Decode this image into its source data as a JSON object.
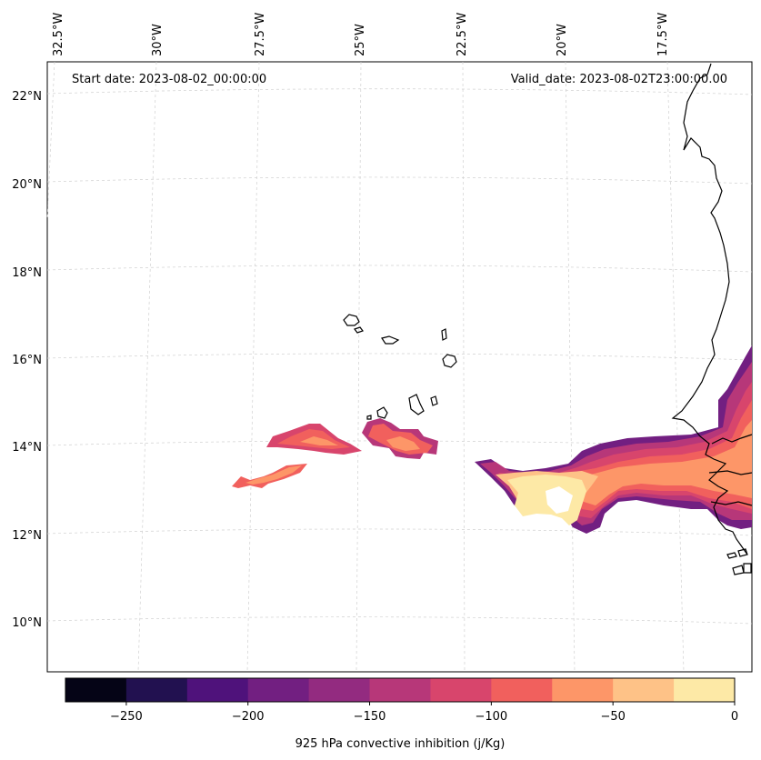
{
  "map": {
    "start_date": "Start date: 2023-08-02_00:00:00",
    "valid_date": "Valid_date: 2023-08-02T23:00:00.00",
    "lon_labels": [
      "32.5°W",
      "30°W",
      "27.5°W",
      "25°W",
      "22.5°W",
      "20°W",
      "17.5°W"
    ],
    "lat_labels": [
      "22°N",
      "20°N",
      "18°N",
      "16°N",
      "14°N",
      "12°N",
      "10°N"
    ],
    "lon_values": [
      -32.5,
      -30,
      -27.5,
      -25,
      -22.5,
      -20,
      -17.5
    ],
    "lat_values": [
      22,
      20,
      18,
      16,
      14,
      12,
      10
    ],
    "lon_range": [
      -33.4,
      -16.0
    ],
    "lat_range": [
      8.9,
      22.8
    ]
  },
  "colorbar": {
    "label": "925 hPa convective inhibition (j/Kg)",
    "tick_labels": [
      "−250",
      "−200",
      "−150",
      "−100",
      "−50",
      "0"
    ],
    "tick_values": [
      -250,
      -200,
      -150,
      -100,
      -50,
      0
    ],
    "levels": [
      -275,
      -250,
      -225,
      -200,
      -175,
      -150,
      -125,
      -100,
      -75,
      -50,
      -25,
      0
    ],
    "colors": [
      "#050416",
      "#221150",
      "#4f127b",
      "#721f81",
      "#932b80",
      "#b73779",
      "#d8456c",
      "#f1605d",
      "#fd9668",
      "#fec287",
      "#fde9a6"
    ]
  },
  "fields": [
    {
      "name": "west-small-patch",
      "value_range": [
        -100,
        -75
      ]
    },
    {
      "name": "west-central-patch",
      "value_range": [
        -150,
        -75
      ]
    },
    {
      "name": "central-patch",
      "value_range": [
        -150,
        -75
      ]
    },
    {
      "name": "coastal-system",
      "value_range": [
        -200,
        0
      ]
    }
  ]
}
